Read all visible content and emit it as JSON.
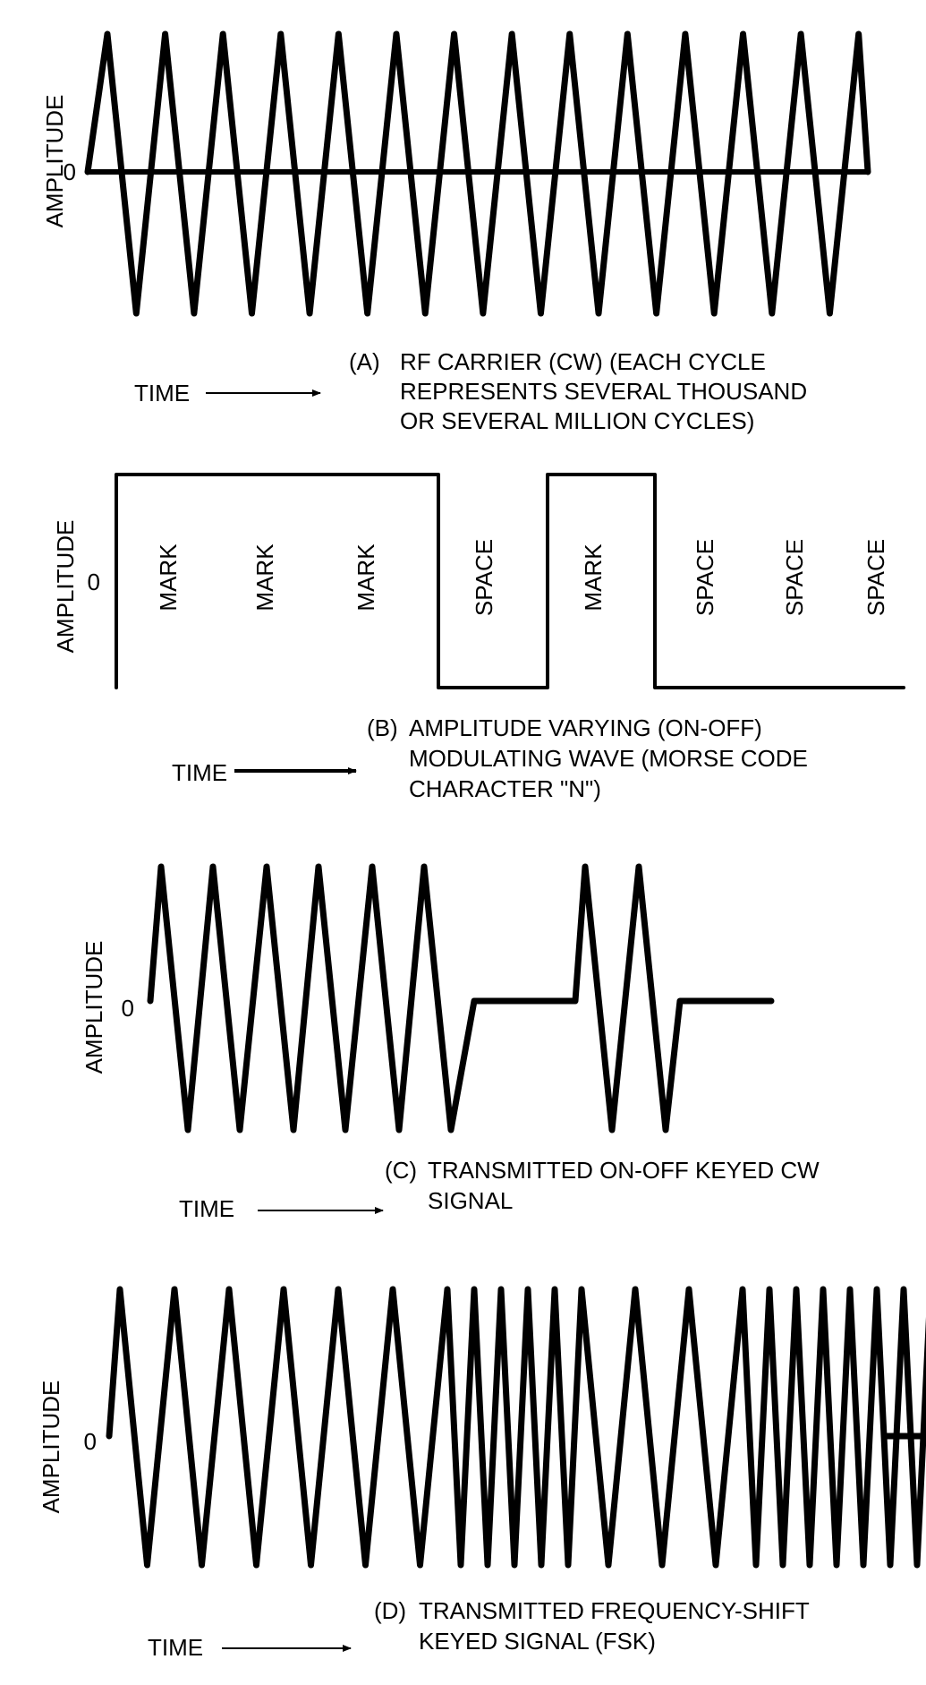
{
  "panels": [
    {
      "id": "A",
      "amplitude_label": "AMPLITUDE",
      "zero_label": "0",
      "time_label": "TIME",
      "caption_letter": "(A)",
      "caption_lines": [
        "RF CARRIER (CW) (EACH CYCLE",
        "REPRESENTS SEVERAL THOUSAND",
        "OR SEVERAL MILLION CYCLES)"
      ],
      "cycles": 14
    },
    {
      "id": "B",
      "amplitude_label": "AMPLITUDE",
      "zero_label": "0",
      "time_label": "TIME",
      "caption_letter": "(B)",
      "caption_lines": [
        "AMPLITUDE VARYING (ON-OFF)",
        "MODULATING WAVE (MORSE CODE",
        "CHARACTER \"N\")"
      ],
      "segment_labels": [
        "MARK",
        "MARK",
        "MARK",
        "SPACE",
        "MARK",
        "SPACE",
        "SPACE",
        "SPACE"
      ],
      "levels": [
        1,
        1,
        1,
        0,
        1,
        0,
        0,
        0
      ]
    },
    {
      "id": "C",
      "amplitude_label": "AMPLITUDE",
      "zero_label": "0",
      "time_label": "TIME",
      "caption_letter": "(C)",
      "caption_lines": [
        "TRANSMITTED ON-OFF KEYED CW",
        "SIGNAL"
      ]
    },
    {
      "id": "D",
      "amplitude_label": "AMPLITUDE",
      "zero_label": "0",
      "time_label": "TIME",
      "caption_letter": "(D)",
      "caption_lines": [
        "TRANSMITTED FREQUENCY-SHIFT",
        "KEYED SIGNAL (FSK)"
      ]
    }
  ]
}
